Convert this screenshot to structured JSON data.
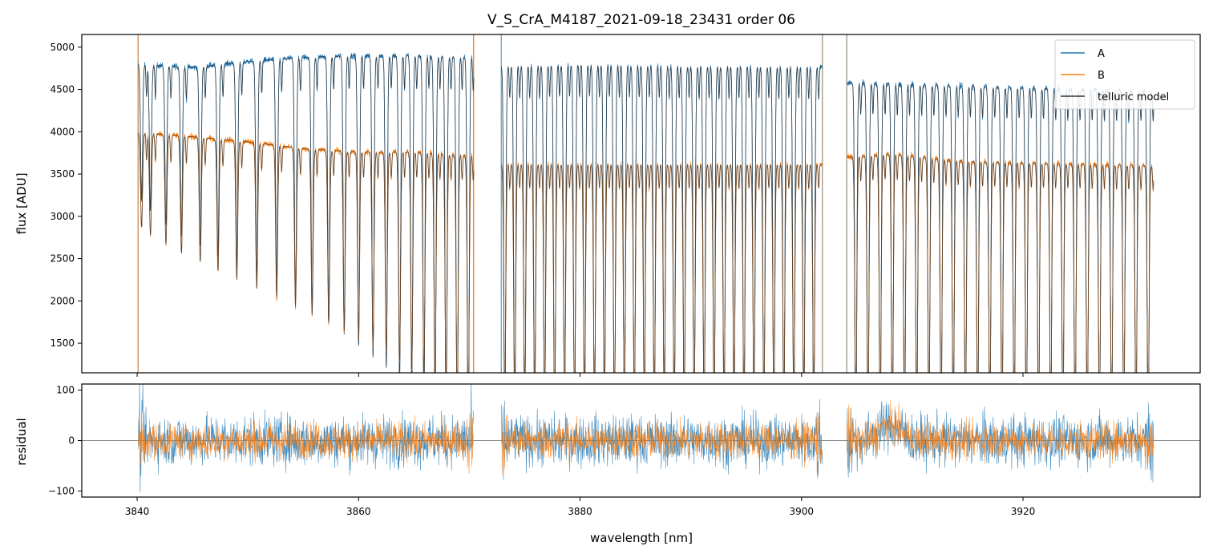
{
  "chart_data": [
    {
      "type": "line",
      "title": "V_S_CrA_M4187_2021-09-18_23431  order 06",
      "xlabel": "wavelength [nm]",
      "ylabel": "flux [ADU]",
      "xlim": [
        3835,
        3936
      ],
      "ylim": [
        1150,
        5150
      ],
      "xticks": [
        3840,
        3860,
        3880,
        3900,
        3920
      ],
      "yticks": [
        1500,
        2000,
        2500,
        3000,
        3500,
        4000,
        4500,
        5000
      ],
      "ytick_labels": [
        "1500",
        "2000",
        "2500",
        "3000",
        "3500",
        "4000",
        "4500",
        "5000"
      ],
      "segments": [
        [
          3840.1,
          3870.4
        ],
        [
          3872.9,
          3901.9
        ],
        [
          3904.1,
          3931.8
        ]
      ],
      "gap_edge_lines": [
        3840.1,
        3870.4,
        3872.9,
        3901.9,
        3904.1
      ],
      "series": [
        {
          "name": "A",
          "color": "#1f77b4",
          "continuum_points": [
            [
              3840.1,
              4800
            ],
            [
              3845,
              4760
            ],
            [
              3850,
              4830
            ],
            [
              3855,
              4880
            ],
            [
              3860,
              4900
            ],
            [
              3865,
              4900
            ],
            [
              3870.4,
              4880
            ],
            [
              3872.9,
              4780
            ],
            [
              3880,
              4800
            ],
            [
              3890,
              4780
            ],
            [
              3895,
              4780
            ],
            [
              3901.9,
              4770
            ],
            [
              3904.1,
              4580
            ],
            [
              3910,
              4560
            ],
            [
              3920,
              4520
            ],
            [
              3931.8,
              4480
            ]
          ],
          "line_depth": 0.75
        },
        {
          "name": "B",
          "color": "#ff7f0e",
          "continuum_points": [
            [
              3840.1,
              3990
            ],
            [
              3845,
              3940
            ],
            [
              3850,
              3880
            ],
            [
              3855,
              3800
            ],
            [
              3860,
              3760
            ],
            [
              3865,
              3760
            ],
            [
              3870.4,
              3720
            ],
            [
              3872.9,
              3620
            ],
            [
              3880,
              3620
            ],
            [
              3890,
              3620
            ],
            [
              3901.9,
              3620
            ],
            [
              3904.1,
              3700
            ],
            [
              3908,
              3740
            ],
            [
              3915,
              3650
            ],
            [
              3925,
              3620
            ],
            [
              3931.8,
              3600
            ]
          ],
          "line_depth": 0.6
        },
        {
          "name": "telluric model",
          "color": "#333333",
          "note": "overlays each observed spectrum"
        }
      ],
      "absorption_lines": {
        "segment_1": [
          3840.4,
          3841.2,
          3842.6,
          3844.0,
          3845.7,
          3847.3,
          3849.0,
          3850.8,
          3852.6,
          3854.3,
          3855.8,
          3857.3,
          3858.7,
          3860.0,
          3861.3,
          3862.5,
          3863.7,
          3864.8,
          3865.9,
          3866.9,
          3867.9,
          3868.9,
          3869.9
        ],
        "segment_2": [
          3873.2,
          3874.1,
          3875.0,
          3875.9,
          3876.8,
          3877.7,
          3878.6,
          3879.5,
          3880.4,
          3881.3,
          3882.2,
          3883.1,
          3884.0,
          3884.9,
          3885.8,
          3886.7,
          3887.6,
          3888.5,
          3889.4,
          3890.3,
          3891.2,
          3892.1,
          3893.0,
          3893.9,
          3894.8,
          3895.7,
          3896.6,
          3897.5,
          3898.4,
          3899.3,
          3900.2,
          3901.1
        ],
        "segment_3": [
          3904.9,
          3906.0,
          3907.1,
          3908.2,
          3909.3,
          3910.4,
          3911.5,
          3912.6,
          3913.7,
          3914.8,
          3915.9,
          3917.0,
          3918.1,
          3919.2,
          3920.3,
          3921.4,
          3922.5,
          3923.6,
          3924.7,
          3925.8,
          3926.9,
          3928.0,
          3929.1,
          3930.2,
          3931.3
        ]
      },
      "legend": {
        "position": "top-right",
        "entries": [
          "A",
          "B",
          "telluric model"
        ]
      }
    },
    {
      "type": "line",
      "title": "",
      "xlabel": "wavelength [nm]",
      "ylabel": "residual",
      "xlim": [
        3835,
        3936
      ],
      "ylim": [
        -112,
        112
      ],
      "xticks": [
        3840,
        3860,
        3880,
        3900,
        3920
      ],
      "xtick_labels": [
        "3840",
        "3860",
        "3880",
        "3900",
        "3920"
      ],
      "yticks": [
        -100,
        0,
        100
      ],
      "ytick_labels": [
        "−100",
        "0",
        "100"
      ],
      "zero_line": 0,
      "series": [
        {
          "name": "A",
          "color": "#1f77b4",
          "noise_amplitude": 48
        },
        {
          "name": "B",
          "color": "#ff7f0e",
          "noise_amplitude": 34
        }
      ]
    }
  ]
}
